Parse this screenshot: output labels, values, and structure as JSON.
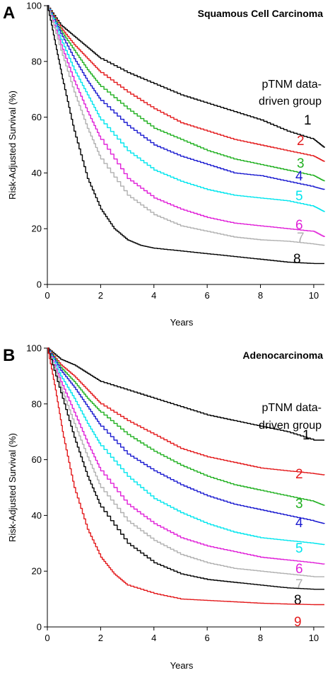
{
  "chart_data": [
    {
      "type": "line",
      "panel_label": "A",
      "title": "Squamous Cell Carcinoma",
      "xlabel": "Years",
      "ylabel": "Risk-Adjusted Survival (%)",
      "xlim": [
        0,
        10.4
      ],
      "ylim": [
        0,
        100
      ],
      "xticks": [
        "0",
        "2",
        "4",
        "6",
        "8",
        "10"
      ],
      "yticks": [
        "0",
        "20",
        "40",
        "60",
        "80",
        "100"
      ],
      "legend_title": [
        "pTNM data-",
        "driven group"
      ],
      "series": [
        {
          "name": "1",
          "color": "#000000",
          "points": [
            [
              0,
              100
            ],
            [
              0.5,
              93
            ],
            [
              1,
              89
            ],
            [
              1.5,
              85
            ],
            [
              2,
              81
            ],
            [
              3,
              76
            ],
            [
              4,
              72
            ],
            [
              5,
              68
            ],
            [
              6,
              65
            ],
            [
              7,
              62
            ],
            [
              8,
              59
            ],
            [
              9,
              55
            ],
            [
              10,
              52
            ],
            [
              10.4,
              49
            ]
          ]
        },
        {
          "name": "2",
          "color": "#e31a1c",
          "points": [
            [
              0,
              100
            ],
            [
              0.5,
              92
            ],
            [
              1,
              86
            ],
            [
              1.5,
              81
            ],
            [
              2,
              76
            ],
            [
              3,
              69
            ],
            [
              4,
              63
            ],
            [
              5,
              58
            ],
            [
              6,
              55
            ],
            [
              7,
              52
            ],
            [
              8,
              50
            ],
            [
              9,
              48
            ],
            [
              10,
              46
            ],
            [
              10.4,
              44
            ]
          ]
        },
        {
          "name": "3",
          "color": "#20b020",
          "points": [
            [
              0,
              100
            ],
            [
              0.5,
              91
            ],
            [
              1,
              84
            ],
            [
              1.5,
              77
            ],
            [
              2,
              71
            ],
            [
              3,
              63
            ],
            [
              4,
              56
            ],
            [
              5,
              52
            ],
            [
              6,
              48
            ],
            [
              7,
              45
            ],
            [
              8,
              43
            ],
            [
              9,
              41
            ],
            [
              10,
              39
            ],
            [
              10.4,
              37
            ]
          ]
        },
        {
          "name": "4",
          "color": "#1a1ad0",
          "points": [
            [
              0,
              100
            ],
            [
              0.5,
              90
            ],
            [
              1,
              81
            ],
            [
              1.5,
              73
            ],
            [
              2,
              66
            ],
            [
              3,
              57
            ],
            [
              4,
              50
            ],
            [
              5,
              46
            ],
            [
              6,
              43
            ],
            [
              7,
              40
            ],
            [
              8,
              39
            ],
            [
              9,
              37
            ],
            [
              10,
              35
            ],
            [
              10.4,
              34
            ]
          ]
        },
        {
          "name": "5",
          "color": "#00e5ee",
          "points": [
            [
              0,
              100
            ],
            [
              0.5,
              88
            ],
            [
              1,
              77
            ],
            [
              1.5,
              68
            ],
            [
              2,
              59
            ],
            [
              3,
              48
            ],
            [
              4,
              41
            ],
            [
              5,
              37
            ],
            [
              6,
              34
            ],
            [
              7,
              32
            ],
            [
              8,
              31
            ],
            [
              9,
              30
            ],
            [
              10,
              28
            ],
            [
              10.4,
              26
            ]
          ]
        },
        {
          "name": "6",
          "color": "#e020d8",
          "points": [
            [
              0,
              100
            ],
            [
              0.5,
              86
            ],
            [
              1,
              73
            ],
            [
              1.5,
              62
            ],
            [
              2,
              52
            ],
            [
              3,
              38
            ],
            [
              4,
              31
            ],
            [
              5,
              27
            ],
            [
              6,
              24
            ],
            [
              7,
              22
            ],
            [
              8,
              21
            ],
            [
              9,
              20
            ],
            [
              10,
              19
            ],
            [
              10.4,
              17
            ]
          ]
        },
        {
          "name": "7",
          "color": "#b0b0b0",
          "points": [
            [
              0,
              100
            ],
            [
              0.5,
              84
            ],
            [
              1,
              69
            ],
            [
              1.5,
              56
            ],
            [
              2,
              45
            ],
            [
              3,
              32
            ],
            [
              4,
              25
            ],
            [
              5,
              21
            ],
            [
              6,
              19
            ],
            [
              7,
              17
            ],
            [
              8,
              16
            ],
            [
              9,
              15.5
            ],
            [
              10,
              14.5
            ],
            [
              10.4,
              14
            ]
          ]
        },
        {
          "name": "8",
          "color": "#000000",
          "points": [
            [
              0,
              100
            ],
            [
              0.3,
              86
            ],
            [
              0.6,
              72
            ],
            [
              1,
              55
            ],
            [
              1.5,
              38
            ],
            [
              2,
              27
            ],
            [
              2.5,
              20
            ],
            [
              3,
              16
            ],
            [
              3.5,
              14
            ],
            [
              4,
              13
            ],
            [
              5,
              12
            ],
            [
              6,
              11
            ],
            [
              7,
              10
            ],
            [
              8,
              9
            ],
            [
              9,
              8
            ],
            [
              10,
              7.5
            ],
            [
              10.4,
              7.5
            ]
          ]
        }
      ]
    },
    {
      "type": "line",
      "panel_label": "B",
      "title": "Adenocarcinoma",
      "xlabel": "Years",
      "ylabel": "Risk-Adjusted Survival (%)",
      "xlim": [
        0,
        10.4
      ],
      "ylim": [
        0,
        100
      ],
      "xticks": [
        "0",
        "2",
        "4",
        "6",
        "8",
        "10"
      ],
      "yticks": [
        "0",
        "20",
        "40",
        "60",
        "80",
        "100"
      ],
      "legend_title": [
        "pTNM data-",
        "driven group"
      ],
      "series": [
        {
          "name": "1",
          "color": "#000000",
          "points": [
            [
              0,
              100
            ],
            [
              0.5,
              96
            ],
            [
              1,
              94
            ],
            [
              1.5,
              91
            ],
            [
              2,
              88
            ],
            [
              3,
              85
            ],
            [
              4,
              82
            ],
            [
              5,
              79
            ],
            [
              6,
              76
            ],
            [
              7,
              74
            ],
            [
              8,
              72
            ],
            [
              9,
              70
            ],
            [
              10,
              67
            ],
            [
              10.4,
              67
            ]
          ]
        },
        {
          "name": "2",
          "color": "#e31a1c",
          "points": [
            [
              0,
              100
            ],
            [
              0.5,
              94
            ],
            [
              1,
              90
            ],
            [
              1.5,
              85
            ],
            [
              2,
              80
            ],
            [
              3,
              74
            ],
            [
              4,
              69
            ],
            [
              5,
              64
            ],
            [
              6,
              61
            ],
            [
              7,
              59
            ],
            [
              8,
              57
            ],
            [
              9,
              56
            ],
            [
              10,
              55
            ],
            [
              10.4,
              54.5
            ]
          ]
        },
        {
          "name": "3",
          "color": "#20b020",
          "points": [
            [
              0,
              100
            ],
            [
              0.5,
              93
            ],
            [
              1,
              88
            ],
            [
              1.5,
              82
            ],
            [
              2,
              77
            ],
            [
              3,
              69
            ],
            [
              4,
              63
            ],
            [
              5,
              58
            ],
            [
              6,
              54
            ],
            [
              7,
              51
            ],
            [
              8,
              49
            ],
            [
              9,
              47
            ],
            [
              10,
              45
            ],
            [
              10.4,
              43.5
            ]
          ]
        },
        {
          "name": "4",
          "color": "#1a1ad0",
          "points": [
            [
              0,
              100
            ],
            [
              0.5,
              92
            ],
            [
              1,
              86
            ],
            [
              1.5,
              79
            ],
            [
              2,
              72
            ],
            [
              3,
              62
            ],
            [
              4,
              56
            ],
            [
              5,
              51
            ],
            [
              6,
              47
            ],
            [
              7,
              44
            ],
            [
              8,
              42
            ],
            [
              9,
              40
            ],
            [
              10,
              38
            ],
            [
              10.4,
              37
            ]
          ]
        },
        {
          "name": "5",
          "color": "#00e5ee",
          "points": [
            [
              0,
              100
            ],
            [
              0.5,
              90
            ],
            [
              1,
              82
            ],
            [
              1.5,
              73
            ],
            [
              2,
              65
            ],
            [
              3,
              54
            ],
            [
              4,
              46
            ],
            [
              5,
              41
            ],
            [
              6,
              37
            ],
            [
              7,
              34
            ],
            [
              8,
              32
            ],
            [
              9,
              31
            ],
            [
              10,
              30
            ],
            [
              10.4,
              29.5
            ]
          ]
        },
        {
          "name": "6",
          "color": "#e020d8",
          "points": [
            [
              0,
              100
            ],
            [
              0.5,
              88
            ],
            [
              1,
              77
            ],
            [
              1.5,
              66
            ],
            [
              2,
              56
            ],
            [
              3,
              44
            ],
            [
              4,
              37
            ],
            [
              5,
              32
            ],
            [
              6,
              29
            ],
            [
              7,
              27
            ],
            [
              8,
              25
            ],
            [
              9,
              24
            ],
            [
              10,
              23
            ],
            [
              10.4,
              22.5
            ]
          ]
        },
        {
          "name": "7",
          "color": "#b0b0b0",
          "points": [
            [
              0,
              100
            ],
            [
              0.5,
              86
            ],
            [
              1,
              73
            ],
            [
              1.5,
              61
            ],
            [
              2,
              50
            ],
            [
              3,
              38
            ],
            [
              4,
              31
            ],
            [
              5,
              26
            ],
            [
              6,
              23
            ],
            [
              7,
              21
            ],
            [
              8,
              20
            ],
            [
              9,
              19
            ],
            [
              10,
              18
            ],
            [
              10.4,
              18
            ]
          ]
        },
        {
          "name": "8",
          "color": "#000000",
          "points": [
            [
              0,
              100
            ],
            [
              0.5,
              84
            ],
            [
              1,
              68
            ],
            [
              1.5,
              54
            ],
            [
              2,
              43
            ],
            [
              3,
              30
            ],
            [
              4,
              23
            ],
            [
              5,
              19
            ],
            [
              6,
              17
            ],
            [
              7,
              16
            ],
            [
              8,
              15
            ],
            [
              9,
              14
            ],
            [
              10,
              13.5
            ],
            [
              10.4,
              13.5
            ]
          ]
        },
        {
          "name": "9",
          "color": "#e31a1c",
          "points": [
            [
              0,
              100
            ],
            [
              0.3,
              85
            ],
            [
              0.6,
              68
            ],
            [
              1,
              50
            ],
            [
              1.5,
              35
            ],
            [
              2,
              25
            ],
            [
              2.5,
              19
            ],
            [
              3,
              15
            ],
            [
              4,
              12
            ],
            [
              5,
              10
            ],
            [
              6,
              9.5
            ],
            [
              7,
              9
            ],
            [
              8,
              8.5
            ],
            [
              9,
              8.2
            ],
            [
              10,
              8
            ],
            [
              10.4,
              8
            ]
          ]
        }
      ]
    }
  ]
}
